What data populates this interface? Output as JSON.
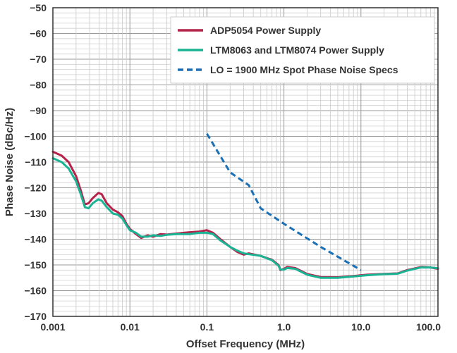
{
  "chart_data": {
    "type": "line",
    "title": "",
    "xlabel": "Offset Frequency (MHz)",
    "ylabel": "Phase Noise (dBc/Hz)",
    "x_scale": "log",
    "xlim": [
      0.001,
      100.0
    ],
    "ylim": [
      -170,
      -50
    ],
    "grid": true,
    "legend_position": "top-right",
    "x_ticks": [
      {
        "value": 0.001,
        "label": "0.001"
      },
      {
        "value": 0.01,
        "label": "0.01"
      },
      {
        "value": 0.1,
        "label": "0.1"
      },
      {
        "value": 1.0,
        "label": "1.0"
      },
      {
        "value": 10.0,
        "label": "10.0"
      },
      {
        "value": 100.0,
        "label": "100.0"
      }
    ],
    "y_ticks": [
      {
        "value": -50,
        "label": "−50"
      },
      {
        "value": -60,
        "label": "−60"
      },
      {
        "value": -70,
        "label": "−70"
      },
      {
        "value": -80,
        "label": "−80"
      },
      {
        "value": -90,
        "label": "−90"
      },
      {
        "value": -100,
        "label": "−100"
      },
      {
        "value": -110,
        "label": "−110"
      },
      {
        "value": -120,
        "label": "−120"
      },
      {
        "value": -130,
        "label": "−130"
      },
      {
        "value": -140,
        "label": "−140"
      },
      {
        "value": -150,
        "label": "−150"
      },
      {
        "value": -160,
        "label": "−160"
      },
      {
        "value": -170,
        "label": "−170"
      }
    ],
    "series": [
      {
        "name": "ADP5054 Power Supply",
        "color": "#b5224a",
        "style": "solid",
        "points": [
          [
            0.001,
            -106
          ],
          [
            0.0013,
            -107.5
          ],
          [
            0.0016,
            -110
          ],
          [
            0.002,
            -115.5
          ],
          [
            0.0023,
            -121
          ],
          [
            0.0026,
            -126.5
          ],
          [
            0.0029,
            -126
          ],
          [
            0.0033,
            -124
          ],
          [
            0.0039,
            -122
          ],
          [
            0.0043,
            -122.5
          ],
          [
            0.005,
            -126
          ],
          [
            0.006,
            -128.5
          ],
          [
            0.007,
            -129.5
          ],
          [
            0.008,
            -131
          ],
          [
            0.009,
            -134
          ],
          [
            0.01,
            -136
          ],
          [
            0.012,
            -138
          ],
          [
            0.014,
            -139.5
          ],
          [
            0.017,
            -138.5
          ],
          [
            0.02,
            -139
          ],
          [
            0.025,
            -138
          ],
          [
            0.03,
            -138.2
          ],
          [
            0.04,
            -137.8
          ],
          [
            0.05,
            -137.5
          ],
          [
            0.06,
            -137.3
          ],
          [
            0.08,
            -137
          ],
          [
            0.1,
            -136.5
          ],
          [
            0.12,
            -137.5
          ],
          [
            0.15,
            -140
          ],
          [
            0.2,
            -143
          ],
          [
            0.25,
            -145
          ],
          [
            0.3,
            -146
          ],
          [
            0.35,
            -145.5
          ],
          [
            0.5,
            -146.5
          ],
          [
            0.7,
            -148
          ],
          [
            0.85,
            -150
          ],
          [
            0.9,
            -152
          ],
          [
            1.0,
            -151.5
          ],
          [
            1.1,
            -150.8
          ],
          [
            1.4,
            -151.2
          ],
          [
            2.0,
            -153.5
          ],
          [
            3.0,
            -154.7
          ],
          [
            5.0,
            -154.8
          ],
          [
            8.0,
            -154.3
          ],
          [
            12.0,
            -153.8
          ],
          [
            20.0,
            -153.5
          ],
          [
            30.0,
            -153.3
          ],
          [
            40.0,
            -152
          ],
          [
            60.0,
            -150.8
          ],
          [
            80.0,
            -151
          ],
          [
            100.0,
            -151.5
          ]
        ]
      },
      {
        "name": "LTM8063 and LTM8074 Power Supply",
        "color": "#1ab394",
        "style": "solid",
        "points": [
          [
            0.001,
            -108.5
          ],
          [
            0.0013,
            -110
          ],
          [
            0.0016,
            -112.5
          ],
          [
            0.002,
            -117.5
          ],
          [
            0.0023,
            -122.5
          ],
          [
            0.0026,
            -127.5
          ],
          [
            0.0029,
            -128
          ],
          [
            0.0033,
            -126
          ],
          [
            0.0039,
            -124.5
          ],
          [
            0.0043,
            -125
          ],
          [
            0.005,
            -127.5
          ],
          [
            0.006,
            -130
          ],
          [
            0.007,
            -130.5
          ],
          [
            0.008,
            -132
          ],
          [
            0.009,
            -134.5
          ],
          [
            0.01,
            -136.5
          ],
          [
            0.012,
            -137.5
          ],
          [
            0.014,
            -139
          ],
          [
            0.017,
            -139
          ],
          [
            0.02,
            -138.5
          ],
          [
            0.025,
            -138.7
          ],
          [
            0.03,
            -138.3
          ],
          [
            0.04,
            -138
          ],
          [
            0.05,
            -138
          ],
          [
            0.06,
            -138
          ],
          [
            0.08,
            -137.5
          ],
          [
            0.1,
            -137.5
          ],
          [
            0.12,
            -138
          ],
          [
            0.15,
            -140.5
          ],
          [
            0.2,
            -143
          ],
          [
            0.25,
            -144.5
          ],
          [
            0.3,
            -145.5
          ],
          [
            0.35,
            -145.8
          ],
          [
            0.5,
            -146.5
          ],
          [
            0.7,
            -148.2
          ],
          [
            0.85,
            -150.3
          ],
          [
            0.9,
            -151.8
          ],
          [
            1.0,
            -151.8
          ],
          [
            1.1,
            -151.2
          ],
          [
            1.4,
            -151.5
          ],
          [
            2.0,
            -153.8
          ],
          [
            3.0,
            -155
          ],
          [
            5.0,
            -155
          ],
          [
            8.0,
            -154.5
          ],
          [
            12.0,
            -154
          ],
          [
            20.0,
            -153.6
          ],
          [
            30.0,
            -153.4
          ],
          [
            40.0,
            -152.2
          ],
          [
            60.0,
            -151
          ],
          [
            80.0,
            -151
          ],
          [
            100.0,
            -151.3
          ]
        ]
      },
      {
        "name": "LO = 1900 MHz Spot Phase Noise Specs",
        "color": "#1a6fb5",
        "style": "dashed",
        "points": [
          [
            0.1,
            -99
          ],
          [
            0.2,
            -114
          ],
          [
            0.35,
            -119
          ],
          [
            0.5,
            -128
          ],
          [
            1.0,
            -134
          ],
          [
            3.0,
            -143
          ],
          [
            10.0,
            -152
          ]
        ]
      }
    ]
  }
}
